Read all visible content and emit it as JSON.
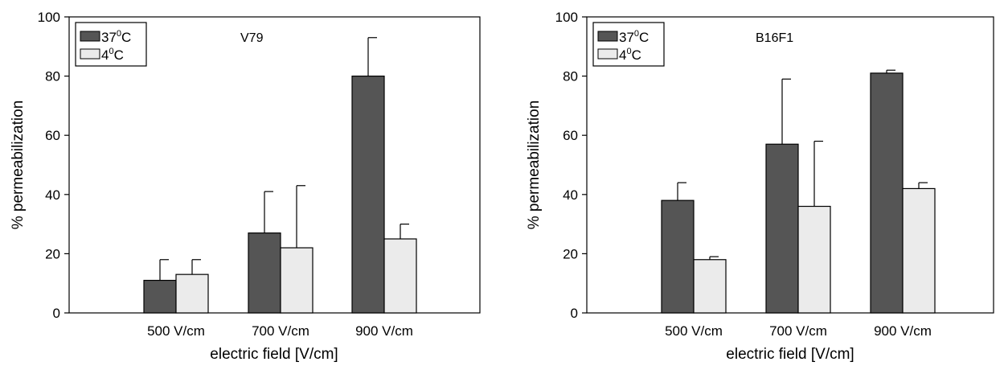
{
  "chart_data": [
    {
      "type": "bar",
      "annotation": "V79",
      "xlabel": "electric field [V/cm]",
      "ylabel": "% permeabilization",
      "ylim": [
        0,
        100
      ],
      "yticks": [
        "0",
        "20",
        "40",
        "60",
        "80",
        "100"
      ],
      "categories": [
        "500 V/cm",
        "700 V/cm",
        "900 V/cm"
      ],
      "series": [
        {
          "name": "37°C",
          "color": "#555555",
          "values": [
            11,
            27,
            80
          ],
          "error": [
            7,
            14,
            13
          ]
        },
        {
          "name": "4°C",
          "color": "#ebebeb",
          "values": [
            13,
            22,
            25
          ],
          "error": [
            5,
            21,
            5
          ]
        }
      ],
      "legend_position": "top-left",
      "grid": false
    },
    {
      "type": "bar",
      "annotation": "B16F1",
      "xlabel": "electric field [V/cm]",
      "ylabel": "% permeabilization",
      "ylim": [
        0,
        100
      ],
      "yticks": [
        "0",
        "20",
        "40",
        "60",
        "80",
        "100"
      ],
      "categories": [
        "500 V/cm",
        "700 V/cm",
        "900 V/cm"
      ],
      "series": [
        {
          "name": "37°C",
          "color": "#555555",
          "values": [
            38,
            57,
            81
          ],
          "error": [
            6,
            22,
            1
          ]
        },
        {
          "name": "4°C",
          "color": "#ebebeb",
          "values": [
            18,
            36,
            42
          ],
          "error": [
            1,
            22,
            2
          ]
        }
      ],
      "legend_position": "top-left",
      "grid": false
    }
  ]
}
